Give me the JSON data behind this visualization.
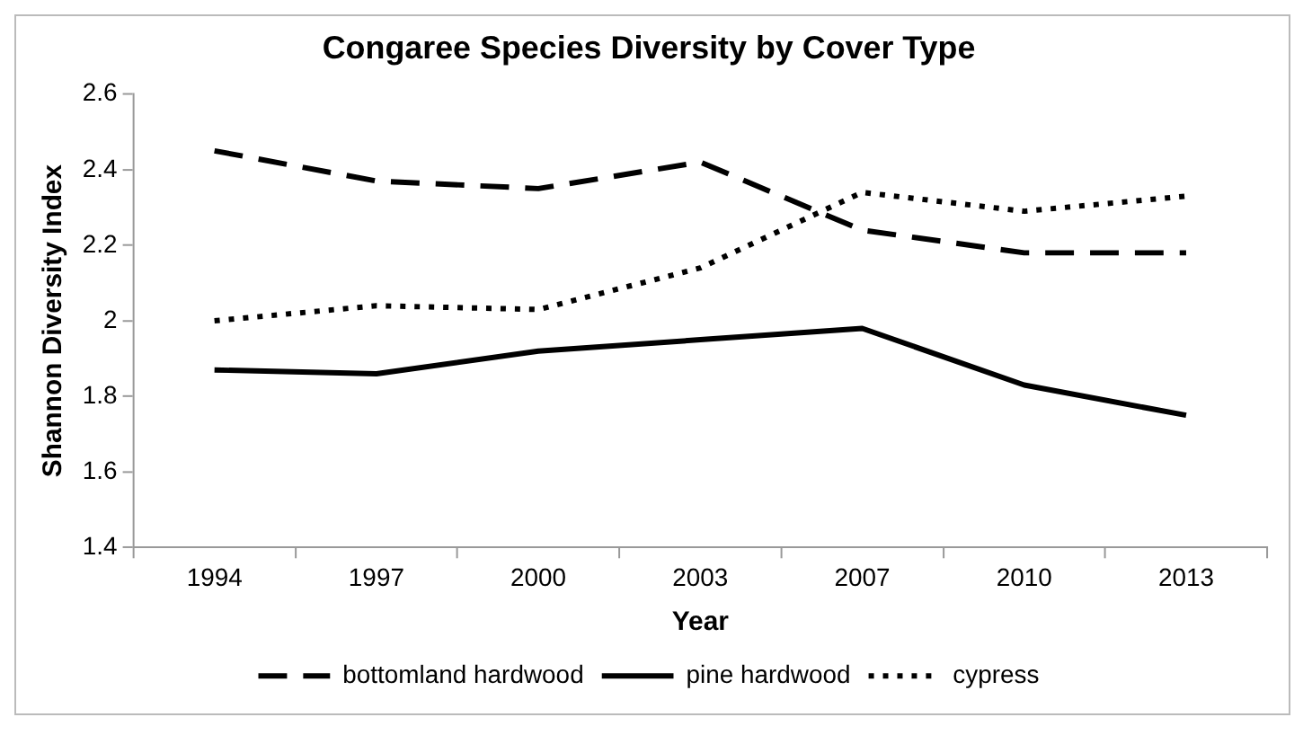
{
  "chart_data": {
    "type": "line",
    "title": "Congaree Species Diversity by Cover Type",
    "xlabel": "Year",
    "ylabel": "Shannon Diversity Index",
    "categories": [
      "1994",
      "1997",
      "2000",
      "2003",
      "2007",
      "2010",
      "2013"
    ],
    "series": [
      {
        "name": "bottomland hardwood",
        "color": "#000000",
        "line_style": "dashed",
        "values": [
          2.45,
          2.37,
          2.35,
          2.42,
          2.24,
          2.18,
          2.18
        ]
      },
      {
        "name": "pine hardwood",
        "color": "#000000",
        "line_style": "solid",
        "values": [
          1.87,
          1.86,
          1.92,
          1.95,
          1.98,
          1.83,
          1.75
        ]
      },
      {
        "name": "cypress",
        "color": "#000000",
        "line_style": "dotted",
        "values": [
          2.0,
          2.04,
          2.03,
          2.14,
          2.34,
          2.29,
          2.33
        ]
      }
    ],
    "ylim": [
      1.4,
      2.6
    ],
    "yticks": [
      1.4,
      1.6,
      1.8,
      2,
      2.2,
      2.4,
      2.6
    ],
    "grid": false,
    "legend": "bottom",
    "marker": "none"
  }
}
